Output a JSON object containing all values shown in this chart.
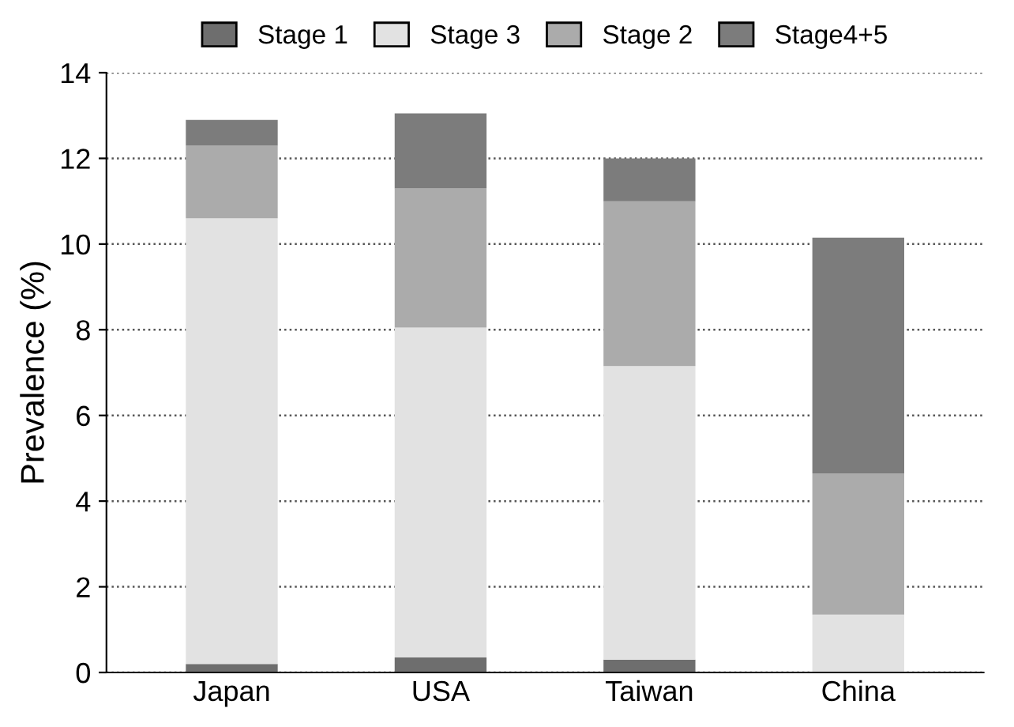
{
  "chart_data": {
    "type": "bar",
    "stacked": true,
    "ylabel": "Prevalence (%)",
    "categories": [
      "Japan",
      "USA",
      "Taiwan",
      "China"
    ],
    "series": [
      {
        "name": "Stage 1",
        "color": "#6e6e6e",
        "values": [
          0.2,
          0.35,
          0.3,
          0
        ]
      },
      {
        "name": "Stage 3",
        "color": "#e2e2e2",
        "values": [
          10.4,
          7.7,
          6.85,
          1.35
        ]
      },
      {
        "name": "Stage 2",
        "color": "#ababab",
        "values": [
          1.7,
          3.25,
          3.85,
          3.3
        ]
      },
      {
        "name": "Stage4+5",
        "color": "#7c7c7c",
        "values": [
          0.6,
          1.75,
          1.0,
          5.5
        ]
      }
    ],
    "ylim": [
      0,
      14
    ],
    "yticks": [
      0,
      2,
      4,
      6,
      8,
      10,
      12,
      14
    ],
    "grid": "y",
    "legend": "top"
  }
}
